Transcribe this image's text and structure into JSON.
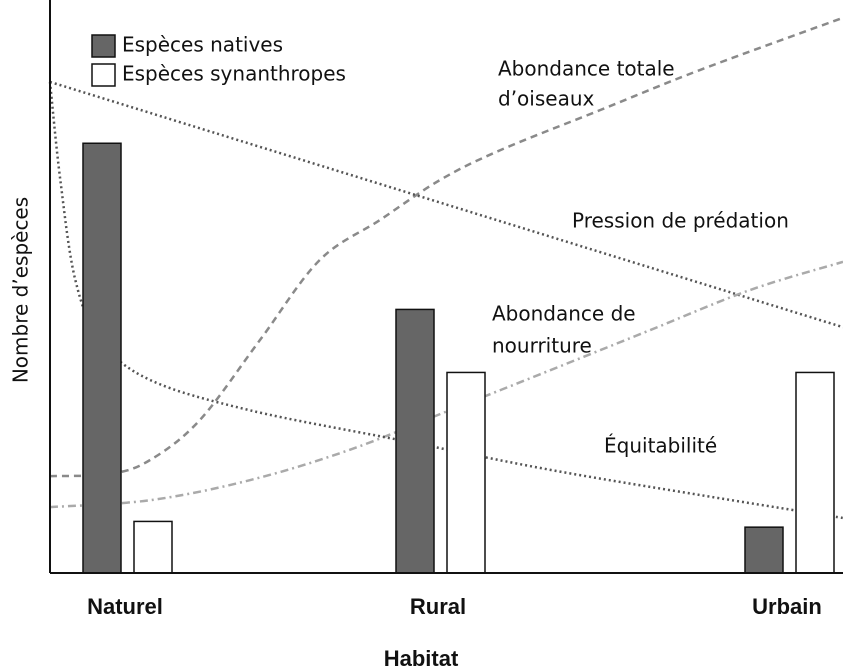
{
  "chart_data": {
    "type": "bar",
    "x_label": "Habitat",
    "y_label": "Nombre d’espèces",
    "categories": [
      "Naturel",
      "Rural",
      "Urbain"
    ],
    "ylim": [
      0,
      100
    ],
    "xlim": [
      0,
      100
    ],
    "legend": "top-left",
    "series": [
      {
        "name": "Espèces natives",
        "color": "#666666",
        "values": [
          75,
          46,
          8
        ]
      },
      {
        "name": "Espèces synanthropes",
        "color": "#ffffff",
        "values": [
          9,
          35,
          35
        ]
      }
    ],
    "curves": [
      {
        "label": [
          "Abondance totale",
          "d’oiseaux"
        ],
        "color": "#8a8a8a",
        "dash": "7 5",
        "x": [
          0,
          7.6,
          12.6,
          18.9,
          26.5,
          34,
          41.6,
          49.2,
          56.8,
          69.4,
          82,
          100
        ],
        "values": [
          16.9,
          17.3,
          19.7,
          26.7,
          40.7,
          54.6,
          61.6,
          68.6,
          73.8,
          80.8,
          87.8,
          96.9
        ]
      },
      {
        "label": [
          "Pression de prédation"
        ],
        "color": "#555555",
        "dash": "2 3",
        "x": [
          0,
          100
        ],
        "values": [
          85.7,
          42.9
        ]
      },
      {
        "label": [
          "Abondance de",
          "nourriture"
        ],
        "color": "#aaaaaa",
        "dash": "8 4 2 4",
        "x": [
          0,
          12.6,
          25.2,
          37.8,
          50.4,
          63.1,
          75.7,
          88.3,
          100
        ],
        "values": [
          11.5,
          12.7,
          16.2,
          21.5,
          28.4,
          35.4,
          42.4,
          49.4,
          54.3
        ]
      },
      {
        "label": [
          "Équitabilité"
        ],
        "color": "#555555",
        "dash": "2 3",
        "x": [
          0,
          1.3,
          3.2,
          6.3,
          12.6,
          25.2,
          44.1,
          63.1,
          82,
          100
        ],
        "values": [
          85.7,
          68.6,
          51.1,
          40.7,
          33.7,
          28.4,
          23.2,
          18,
          13.6,
          9.6
        ]
      }
    ]
  }
}
